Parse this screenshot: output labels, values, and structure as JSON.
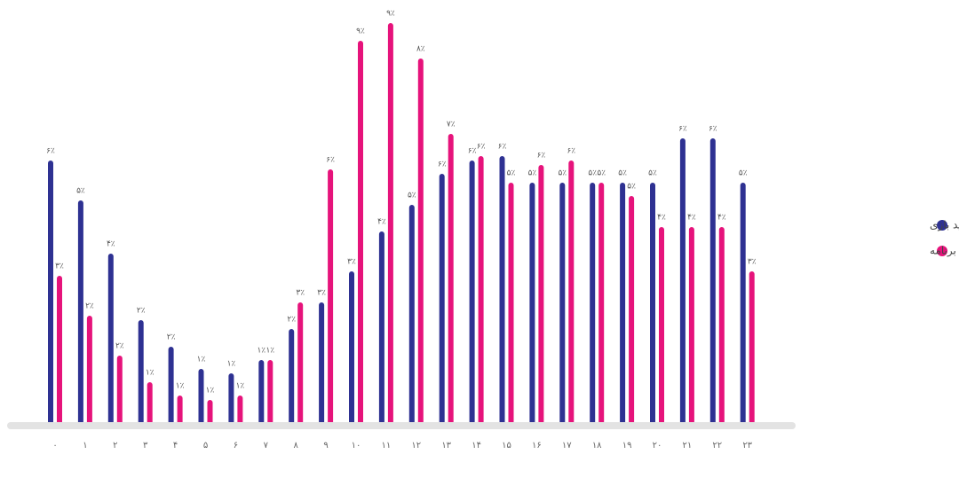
{
  "chart_data": {
    "type": "bar",
    "categories": [
      "۰",
      "۱",
      "۲",
      "۳",
      "۴",
      "۵",
      "۶",
      "۷",
      "۸",
      "۹",
      "۱۰",
      "۱۱",
      "۱۲",
      "۱۳",
      "۱۴",
      "۱۵",
      "۱۶",
      "۱۷",
      "۱۸",
      "۱۹",
      "۲۰",
      "۲۱",
      "۲۲",
      "۲۳"
    ],
    "series": [
      {
        "name": "خرید بازی",
        "color": "#2e3192",
        "values": [
          5.9,
          5.0,
          3.8,
          2.3,
          1.7,
          1.2,
          1.1,
          1.4,
          2.1,
          2.7,
          3.4,
          4.3,
          4.9,
          5.6,
          5.9,
          6.0,
          5.4,
          5.4,
          5.4,
          5.4,
          5.4,
          6.4,
          6.4,
          5.4
        ],
        "value_labels": [
          "۶٪",
          "۵٪",
          "۴٪",
          "۲٪",
          "۲٪",
          "۱٪",
          "۱٪",
          "۱٪",
          "۲٪",
          "۳٪",
          "۳٪",
          "۴٪",
          "۵٪",
          "۶٪",
          "۶٪",
          "۶٪",
          "۵٪",
          "۵٪",
          "۵٪",
          "۵٪",
          "۵٪",
          "۶٪",
          "۶٪",
          "۵٪"
        ]
      },
      {
        "name": "خرید برنامه",
        "color": "#e6137b",
        "values": [
          3.3,
          2.4,
          1.5,
          0.9,
          0.6,
          0.5,
          0.6,
          1.4,
          2.7,
          5.7,
          8.6,
          9.0,
          8.2,
          6.5,
          6.0,
          5.4,
          5.8,
          5.9,
          5.4,
          5.1,
          4.4,
          4.4,
          4.4,
          3.4
        ],
        "value_labels": [
          "۳٪",
          "۲٪",
          "۲٪",
          "۱٪",
          "۱٪",
          "۱٪",
          "۱٪",
          "۱٪",
          "۳٪",
          "۶٪",
          "۹٪",
          "۹٪",
          "۸٪",
          "۷٪",
          "۶٪",
          "۵٪",
          "۶٪",
          "۶٪",
          "۵٪",
          "۵٪",
          "۴٪",
          "۴٪",
          "۴٪",
          "۳٪"
        ]
      }
    ],
    "ylim": [
      0,
      9.5
    ],
    "legend": "right"
  }
}
